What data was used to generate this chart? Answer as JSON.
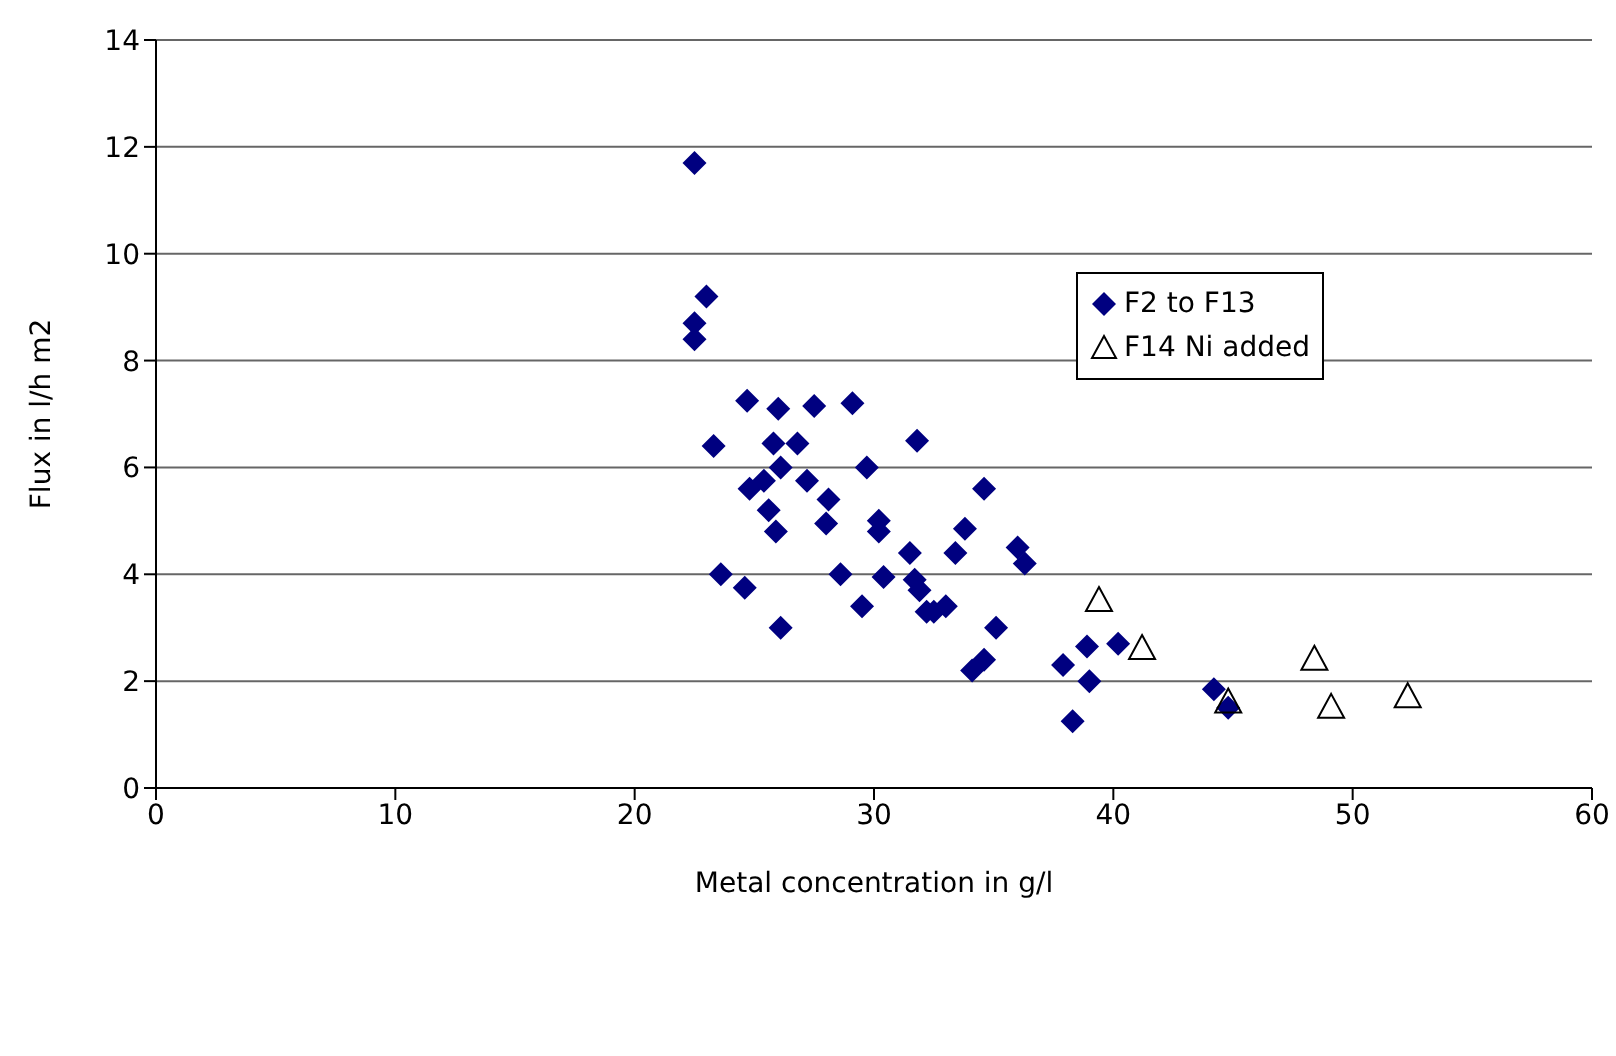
{
  "chart_data": {
    "type": "scatter",
    "xlabel": "Metal concentration in g/l",
    "ylabel": "Flux in l/h m2",
    "xlim": [
      0,
      60
    ],
    "xticks": [
      0,
      10,
      20,
      30,
      40,
      50,
      60
    ],
    "ylim": [
      0,
      14
    ],
    "yticks": [
      0,
      2,
      4,
      6,
      8,
      10,
      12,
      14
    ],
    "grid": "y",
    "legend": "top right",
    "series": [
      {
        "name": "F2 to F13",
        "color": "#000080",
        "marker": "diamond",
        "x": [
          22.5,
          23,
          22.5,
          22.5,
          23.3,
          23.6,
          24.7,
          24.6,
          24.8,
          25.4,
          25.6,
          25.8,
          25.9,
          26,
          26.1,
          26.1,
          26.8,
          27.2,
          27.5,
          28,
          28.1,
          28.6,
          29.1,
          29.5,
          29.7,
          30.2,
          30.2,
          30.4,
          31.5,
          31.7,
          31.8,
          31.9,
          32.2,
          32.5,
          33,
          33.4,
          33.8,
          34.1,
          34.6,
          34.6,
          35.1,
          36,
          36.3,
          37.9,
          38.3,
          38.9,
          39,
          40.2,
          44.2,
          44.8
        ],
        "values": [
          11.7,
          9.2,
          8.7,
          8.4,
          6.4,
          4.0,
          7.25,
          3.75,
          5.6,
          5.75,
          5.2,
          6.45,
          4.8,
          7.1,
          6.0,
          3.0,
          6.45,
          5.75,
          7.15,
          4.95,
          5.4,
          4.0,
          7.2,
          3.4,
          6.0,
          5.0,
          4.8,
          3.95,
          4.4,
          3.9,
          6.5,
          3.7,
          3.3,
          3.3,
          3.4,
          4.4,
          4.85,
          2.2,
          2.4,
          5.6,
          3.0,
          4.5,
          4.2,
          2.3,
          1.25,
          2.65,
          2.0,
          2.7,
          1.85,
          1.5
        ]
      },
      {
        "name": "F14 Ni added",
        "color": "#000000",
        "marker": "triangle",
        "x": [
          39.4,
          41.2,
          44.8,
          48.4,
          49.1,
          52.3
        ],
        "values": [
          3.5,
          2.6,
          1.6,
          2.4,
          1.5,
          1.7
        ]
      }
    ]
  }
}
